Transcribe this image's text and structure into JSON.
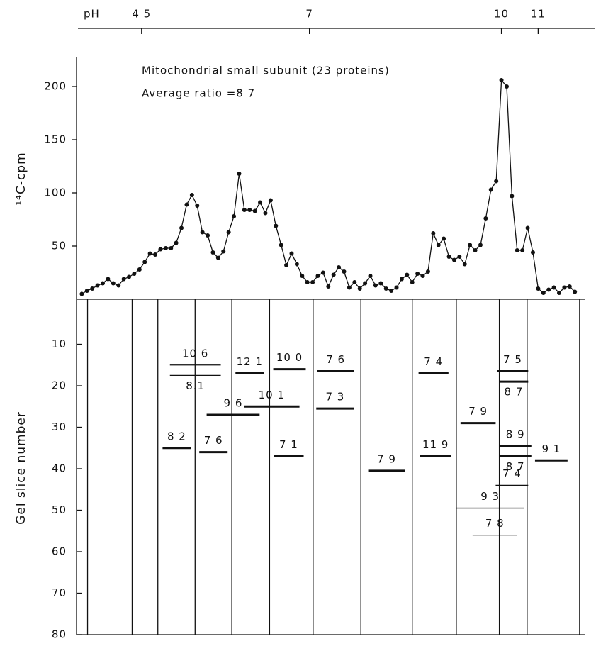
{
  "chart_data": [
    {
      "type": "line",
      "title": "Mitochondrial small subunit (23 proteins)",
      "annotation": "Average ratio =8 7",
      "y_label": "¹⁴C-cpm",
      "color": "#111111",
      "values": [
        5,
        8,
        10,
        13,
        15,
        19,
        15,
        13,
        19,
        21,
        24,
        28,
        35,
        43,
        42,
        47,
        48,
        48,
        53,
        67,
        89,
        98,
        88,
        63,
        60,
        44,
        39,
        45,
        63,
        78,
        118,
        84,
        84,
        83,
        91,
        81,
        93,
        69,
        51,
        32,
        43,
        33,
        22,
        16,
        16,
        22,
        25,
        12,
        23,
        30,
        26,
        11,
        16,
        10,
        15,
        22,
        13,
        15,
        10,
        8,
        11,
        19,
        23,
        16,
        24,
        22,
        26,
        62,
        51,
        57,
        40,
        37,
        40,
        33,
        51,
        46,
        51,
        76,
        103,
        111,
        206,
        200,
        97,
        46,
        46,
        67,
        44,
        10,
        6,
        9,
        11,
        6,
        11,
        12,
        7
      ],
      "xlim": [
        -1,
        96
      ],
      "ylim": [
        0,
        228
      ],
      "yticks": [
        50,
        100,
        150,
        200
      ],
      "ph_axis": {
        "label": "pH",
        "ticks": [
          {
            "value": 4.5,
            "label": "4 5",
            "slice": 11.4
          },
          {
            "value": 7,
            "slice": 43.4
          },
          {
            "value": 10,
            "slice": 80
          },
          {
            "value": 11,
            "slice": 87
          }
        ]
      }
    },
    {
      "type": "gel",
      "y_label": "Gel slice number",
      "xlim": [
        -1,
        96
      ],
      "ylim": [
        0,
        80
      ],
      "yticks": [
        10,
        20,
        30,
        40,
        50,
        60,
        70,
        80
      ],
      "column_edges": [
        1.1,
        9.6,
        14.5,
        21.6,
        28.6,
        35.8,
        44.1,
        53.2,
        63,
        71.4,
        79.6,
        84.9,
        94.9
      ],
      "spots": [
        {
          "label": "10 6",
          "slice": 15,
          "x": [
            16.8,
            26.5
          ],
          "weight": "thin"
        },
        {
          "label": "8.1",
          "slice": 17.5,
          "x": [
            16.8,
            26.5
          ],
          "weight": "thin",
          "label_position": "below"
        },
        {
          "label": "12 1",
          "slice": 17,
          "x": [
            29.3,
            34.7
          ]
        },
        {
          "label": "10 0",
          "slice": 16,
          "x": [
            36.5,
            42.7
          ]
        },
        {
          "label": "7 6",
          "slice": 16.5,
          "x": [
            44.9,
            51.9
          ]
        },
        {
          "label": "7 4",
          "slice": 17,
          "x": [
            64.2,
            69.9
          ]
        },
        {
          "label": "7 5",
          "slice": 16.5,
          "x": [
            79.2,
            85.1
          ]
        },
        {
          "label": "8 7",
          "slice": 19,
          "x": [
            79.6,
            85.1
          ],
          "label_position": "below"
        },
        {
          "label": "9 6",
          "slice": 27,
          "x": [
            23.8,
            33.9
          ]
        },
        {
          "label": "10 1",
          "slice": 25,
          "x": [
            30.9,
            41.5
          ]
        },
        {
          "label": "7 3",
          "slice": 25.5,
          "x": [
            44.7,
            51.9
          ]
        },
        {
          "label": "7 9",
          "slice": 29,
          "x": [
            72.2,
            78.9
          ]
        },
        {
          "label": "8 2",
          "slice": 35,
          "x": [
            15.4,
            20.8
          ]
        },
        {
          "label": "7 6",
          "slice": 36,
          "x": [
            22.4,
            27.8
          ]
        },
        {
          "label": "7 1",
          "slice": 37,
          "x": [
            36.6,
            42.3
          ]
        },
        {
          "label": "7 9",
          "slice": 40.5,
          "x": [
            54.6,
            61.6
          ]
        },
        {
          "label": "11 9",
          "slice": 37,
          "x": [
            64.5,
            70.4
          ]
        },
        {
          "label": "8 9",
          "slice": 34.5,
          "x": [
            79.6,
            85.7
          ]
        },
        {
          "label": "8 7",
          "slice": 37,
          "x": [
            79.6,
            85.7
          ],
          "label_position": "below"
        },
        {
          "label": "9 1",
          "slice": 38,
          "x": [
            86.4,
            92.6
          ]
        },
        {
          "label": "7 4",
          "slice": 44,
          "x": [
            78.9,
            85.1
          ],
          "weight": "thin"
        },
        {
          "label": "9 3",
          "slice": 49.5,
          "x": [
            71.4,
            84.3
          ],
          "weight": "thin"
        },
        {
          "label": "7 8",
          "slice": 56,
          "x": [
            74.5,
            83.0
          ],
          "weight": "thin"
        }
      ]
    }
  ]
}
